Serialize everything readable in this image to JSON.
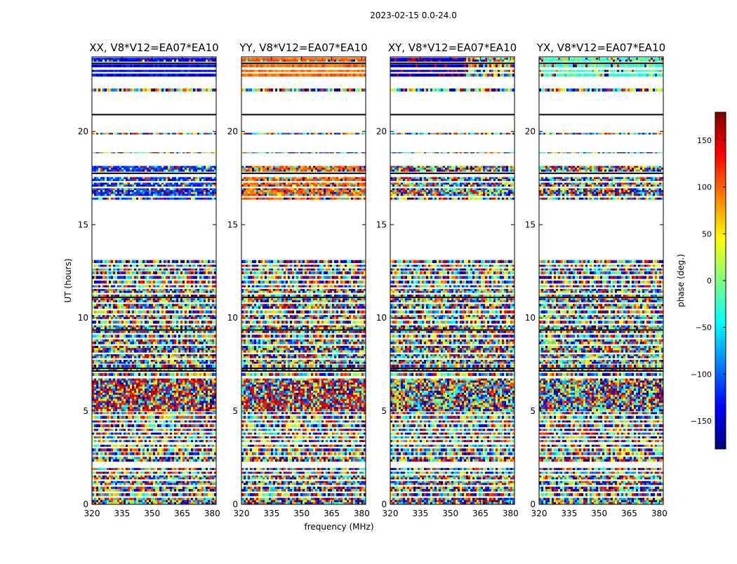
{
  "chart_data": {
    "type": "heatmap",
    "suptitle": "2023-02-15 0.0-24.0",
    "xlabel": "frequency (MHz)",
    "ylabel": "UT (hours)",
    "xlim": [
      320,
      382
    ],
    "ylim": [
      0,
      24
    ],
    "xticks": [
      "320",
      "335",
      "350",
      "365",
      "380"
    ],
    "yticks": [
      "0",
      "5",
      "10",
      "15",
      "20"
    ],
    "panels": [
      {
        "title": "XX, V8*V12=EA07*EA10",
        "polarization": "XX",
        "bands": [
          {
            "from": 23.0,
            "to": 24.0,
            "pattern": "strong-blue"
          },
          {
            "from": 22.2,
            "to": 22.5,
            "pattern": "noise"
          },
          {
            "from": 17.8,
            "to": 18.2,
            "pattern": "strong-blue-noise"
          },
          {
            "from": 16.3,
            "to": 17.6,
            "pattern": "strong-blue-noise"
          },
          {
            "from": 6.2,
            "to": 7.0,
            "pattern": "noise"
          },
          {
            "from": 5.0,
            "to": 6.2,
            "pattern": "red-streaks"
          }
        ]
      },
      {
        "title": "YY, V8*V12=EA07*EA10",
        "polarization": "YY",
        "bands": [
          {
            "from": 23.0,
            "to": 24.0,
            "pattern": "strong-orange"
          },
          {
            "from": 22.2,
            "to": 22.5,
            "pattern": "noise"
          },
          {
            "from": 17.8,
            "to": 18.2,
            "pattern": "strong-orange-noise"
          },
          {
            "from": 16.3,
            "to": 17.6,
            "pattern": "strong-orange-noise"
          },
          {
            "from": 5.0,
            "to": 6.2,
            "pattern": "red-streaks"
          }
        ]
      },
      {
        "title": "XY, V8*V12=EA07*EA10",
        "polarization": "XY",
        "bands": [
          {
            "from": 23.0,
            "to": 24.0,
            "pattern": "dark-blue-red"
          },
          {
            "from": 16.3,
            "to": 17.6,
            "pattern": "noise"
          }
        ]
      },
      {
        "title": "YX, V8*V12=EA07*EA10",
        "polarization": "YX",
        "bands": [
          {
            "from": 23.0,
            "to": 24.0,
            "pattern": "cyan-green"
          },
          {
            "from": 16.3,
            "to": 17.6,
            "pattern": "noise"
          }
        ]
      }
    ],
    "data_rows_hours": [
      [
        0.0,
        0.35
      ],
      [
        0.45,
        0.6
      ],
      [
        0.7,
        0.95
      ],
      [
        1.05,
        1.25
      ],
      [
        1.35,
        1.55
      ],
      [
        1.65,
        1.75
      ],
      [
        1.85,
        1.95
      ],
      [
        2.3,
        2.55
      ],
      [
        2.65,
        2.8
      ],
      [
        2.85,
        3.0
      ],
      [
        3.1,
        3.2
      ],
      [
        3.35,
        3.45
      ],
      [
        3.55,
        3.65
      ],
      [
        3.75,
        3.85
      ],
      [
        3.95,
        4.05
      ],
      [
        4.15,
        4.3
      ],
      [
        4.4,
        4.5
      ],
      [
        4.6,
        4.75
      ],
      [
        4.85,
        4.95
      ],
      [
        5.0,
        6.75
      ],
      [
        6.9,
        7.05
      ],
      [
        7.15,
        7.25
      ],
      [
        7.35,
        7.5
      ],
      [
        7.55,
        7.75
      ],
      [
        7.85,
        8.05
      ],
      [
        8.15,
        8.5
      ],
      [
        8.6,
        8.85
      ],
      [
        8.95,
        9.1
      ],
      [
        9.2,
        9.3
      ],
      [
        9.4,
        9.6
      ],
      [
        9.7,
        9.85
      ],
      [
        9.95,
        10.15
      ],
      [
        10.25,
        10.4
      ],
      [
        10.5,
        10.75
      ],
      [
        10.85,
        11.05
      ],
      [
        11.15,
        11.25
      ],
      [
        11.35,
        11.55
      ],
      [
        11.65,
        11.75
      ],
      [
        11.85,
        12.0
      ],
      [
        12.1,
        12.25
      ],
      [
        12.35,
        12.5
      ],
      [
        12.55,
        12.65
      ],
      [
        12.75,
        12.85
      ],
      [
        12.95,
        13.1
      ],
      [
        16.35,
        16.45
      ],
      [
        16.55,
        16.95
      ],
      [
        17.05,
        17.25
      ],
      [
        17.35,
        17.55
      ],
      [
        17.85,
        18.15
      ],
      [
        18.85,
        18.88
      ],
      [
        19.85,
        19.92
      ],
      [
        22.15,
        22.3
      ],
      [
        22.95,
        23.1
      ],
      [
        23.2,
        23.3
      ],
      [
        23.45,
        23.6
      ],
      [
        23.75,
        23.95
      ]
    ],
    "flagged_lines_hours": [
      7.15,
      7.3,
      9.35,
      11.1,
      17.75,
      20.9,
      23.65
    ],
    "colorbar": {
      "label": "phase (deg.)",
      "range": [
        -180,
        180
      ],
      "ticks": [
        "150",
        "100",
        "50",
        "0",
        "−50",
        "−100",
        "−150"
      ],
      "tick_values": [
        150,
        100,
        50,
        0,
        -50,
        -100,
        -150
      ],
      "colormap": "jet",
      "colors": [
        "#00007f",
        "#0000ff",
        "#007fff",
        "#00ffff",
        "#7fff7f",
        "#ffff00",
        "#ff7f00",
        "#ff0000",
        "#7f0000"
      ]
    }
  }
}
